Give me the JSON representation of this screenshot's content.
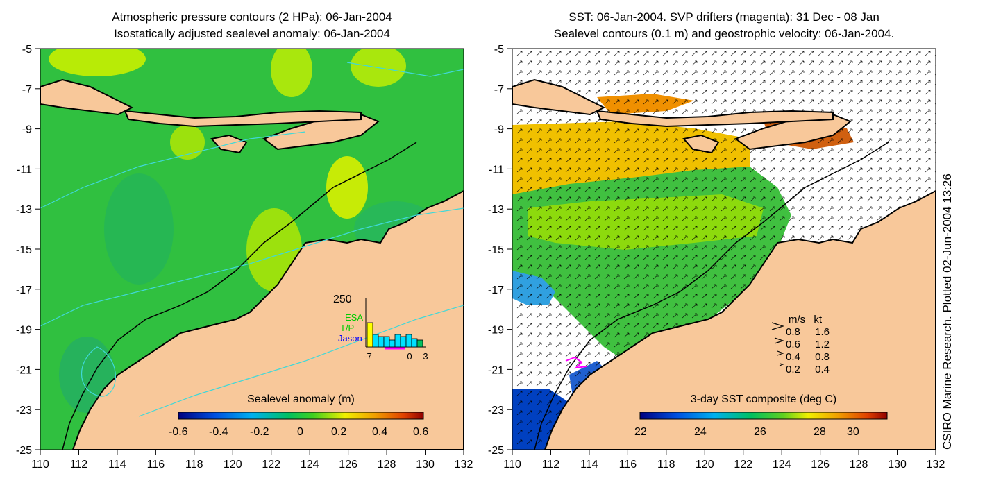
{
  "left_panel": {
    "title_line1": "Atmospheric pressure contours (2 HPa): 06-Jan-2004",
    "title_line2": "Isostatically adjusted sealevel anomaly: 06-Jan-2004",
    "colorbar_label": "Sealevel anomaly (m)",
    "colorbar_ticks": [
      "-0.6",
      "-0.4",
      "-0.2",
      "0",
      "0.2",
      "0.4",
      "0.6"
    ],
    "inset": {
      "y_max_label": "250",
      "missions": [
        "ESA",
        "T/P",
        "Jason"
      ],
      "mission_colors": [
        "#00cc00",
        "#00cc00",
        "#0000ff"
      ],
      "x_tick_labels": [
        "-7",
        "0",
        "3"
      ]
    }
  },
  "right_panel": {
    "title_line1": "SST: 06-Jan-2004. SVP drifters (magenta): 31 Dec - 08 Jan",
    "title_line2": "Sealevel contours (0.1 m) and geostrophic velocity: 06-Jan-2004.",
    "colorbar_label": "3-day SST composite (deg C)",
    "colorbar_ticks": [
      "22",
      "24",
      "26",
      "28",
      "30"
    ],
    "velocity_legend": {
      "header_ms": "m/s",
      "header_kt": "kt",
      "rows": [
        {
          "ms": "0.8",
          "kt": "1.6"
        },
        {
          "ms": "0.6",
          "kt": "1.2"
        },
        {
          "ms": "0.4",
          "kt": "0.8"
        },
        {
          "ms": "0.2",
          "kt": "0.4"
        }
      ]
    }
  },
  "axes": {
    "lon_ticks": [
      "110",
      "112",
      "114",
      "116",
      "118",
      "120",
      "122",
      "124",
      "126",
      "128",
      "130",
      "132"
    ],
    "lat_ticks": [
      "-5",
      "-7",
      "-9",
      "-11",
      "-13",
      "-15",
      "-17",
      "-19",
      "-21",
      "-23",
      "-25"
    ],
    "lon_range": [
      110,
      132
    ],
    "lat_range": [
      -25,
      -5
    ]
  },
  "credit": "CSIRO Marine Research. Plotted 02-Jun-2004 13:26",
  "colors": {
    "land": "#f8c89a",
    "coast": "#000000",
    "contour": "#40d8d8",
    "drifter": "#ff00ff"
  }
}
